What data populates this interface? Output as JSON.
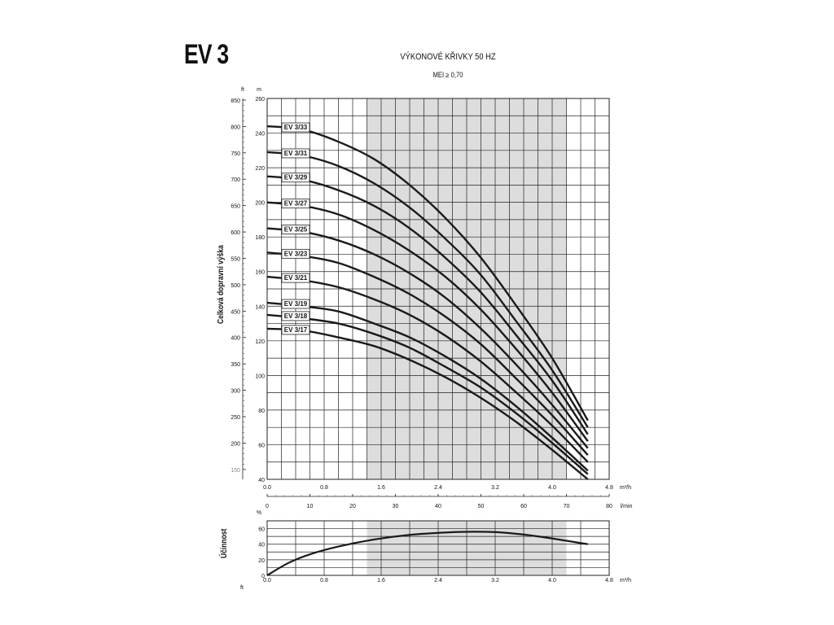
{
  "model": "EV 3",
  "title": "VÝKONOVÉ KŘIVKY 50 HZ",
  "subtitle": "MEI ≥ 0,70",
  "head_axis_label": "Celková dopravní výška",
  "efficiency_axis_label": "Účinnost",
  "units": {
    "ft": "ft",
    "m": "m",
    "flow_m3h": "m³/h",
    "flow_lmin": "l/min",
    "percent": "%",
    "ft_bottom": "ft"
  },
  "colors": {
    "curve": "#1a1a1a",
    "shade": "#dddddd",
    "grid": "#222222"
  },
  "chart_data": [
    {
      "type": "line",
      "title": "VÝKONOVÉ KŘIVKY 50 HZ",
      "ylabel": "Celková dopravní výška",
      "xlim": [
        0,
        4.8
      ],
      "ylim": [
        40,
        260
      ],
      "grid": true,
      "shaded_range_x": [
        1.4,
        4.2
      ],
      "x_ticks": [
        "0.0",
        "0.8",
        "1.6",
        "2.4",
        "3.2",
        "4.0",
        "4.8"
      ],
      "x_tick_values": [
        0,
        0.8,
        1.6,
        2.4,
        3.2,
        4.0,
        4.8
      ],
      "x2_ticks": [
        "0",
        "10",
        "20",
        "30",
        "40",
        "50",
        "60",
        "70",
        "80"
      ],
      "y_ticks_m": [
        "40",
        "60",
        "80",
        "100",
        "120",
        "140",
        "160",
        "180",
        "200",
        "220",
        "240",
        "260"
      ],
      "y_ticks_ft": [
        "150",
        "200",
        "250",
        "300",
        "350",
        "400",
        "450",
        "500",
        "550",
        "600",
        "650",
        "700",
        "750",
        "800",
        "850"
      ],
      "series": [
        {
          "name": "EV 3/33",
          "x": [
            0,
            0.5,
            1.0,
            1.5,
            2.0,
            2.5,
            3.0,
            3.5,
            4.0,
            4.5
          ],
          "y": [
            244,
            242,
            235,
            225,
            210,
            191,
            168,
            140,
            110,
            74
          ]
        },
        {
          "name": "EV 3/31",
          "x": [
            0,
            0.5,
            1.0,
            1.5,
            2.0,
            2.5,
            3.0,
            3.5,
            4.0,
            4.5
          ],
          "y": [
            229,
            227,
            221,
            211,
            197,
            179,
            158,
            131,
            103,
            70
          ]
        },
        {
          "name": "EV 3/29",
          "x": [
            0,
            0.5,
            1.0,
            1.5,
            2.0,
            2.5,
            3.0,
            3.5,
            4.0,
            4.5
          ],
          "y": [
            215,
            213,
            207,
            198,
            185,
            168,
            148,
            123,
            97,
            66
          ]
        },
        {
          "name": "EV 3/27",
          "x": [
            0,
            0.5,
            1.0,
            1.5,
            2.0,
            2.5,
            3.0,
            3.5,
            4.0,
            4.5
          ],
          "y": [
            200,
            198,
            193,
            184,
            172,
            157,
            138,
            115,
            90,
            62
          ]
        },
        {
          "name": "EV 3/25",
          "x": [
            0,
            0.5,
            1.0,
            1.5,
            2.0,
            2.5,
            3.0,
            3.5,
            4.0,
            4.5
          ],
          "y": [
            185,
            183,
            178,
            170,
            159,
            145,
            127,
            106,
            83,
            58
          ]
        },
        {
          "name": "EV 3/23",
          "x": [
            0,
            0.5,
            1.0,
            1.5,
            2.0,
            2.5,
            3.0,
            3.5,
            4.0,
            4.5
          ],
          "y": [
            171,
            169,
            165,
            157,
            147,
            134,
            118,
            98,
            77,
            54
          ]
        },
        {
          "name": "EV 3/21",
          "x": [
            0,
            0.5,
            1.0,
            1.5,
            2.0,
            2.5,
            3.0,
            3.5,
            4.0,
            4.5
          ],
          "y": [
            157,
            155,
            151,
            144,
            135,
            123,
            108,
            90,
            71,
            50
          ]
        },
        {
          "name": "EV 3/19",
          "x": [
            0,
            0.5,
            1.0,
            1.5,
            2.0,
            2.5,
            3.0,
            3.5,
            4.0,
            4.5
          ],
          "y": [
            142,
            140,
            137,
            130,
            122,
            111,
            98,
            82,
            64,
            45
          ]
        },
        {
          "name": "EV 3/18",
          "x": [
            0,
            0.5,
            1.0,
            1.5,
            2.0,
            2.5,
            3.0,
            3.5,
            4.0,
            4.5
          ],
          "y": [
            135,
            133,
            130,
            124,
            116,
            105,
            93,
            78,
            61,
            43
          ]
        },
        {
          "name": "EV 3/17",
          "x": [
            0,
            0.5,
            1.0,
            1.5,
            2.0,
            2.5,
            3.0,
            3.5,
            4.0,
            4.5
          ],
          "y": [
            127,
            126,
            122,
            117,
            109,
            99,
            87,
            73,
            57,
            40
          ]
        }
      ]
    },
    {
      "type": "line",
      "ylabel": "Účinnost",
      "xlim": [
        0,
        4.8
      ],
      "ylim": [
        0,
        70
      ],
      "grid": true,
      "shaded_range_x": [
        1.4,
        4.2
      ],
      "x_ticks": [
        "0.0",
        "0.8",
        "1.6",
        "2.4",
        "3.2",
        "4.0",
        "4.8"
      ],
      "y_ticks": [
        "0",
        "20",
        "40",
        "60"
      ],
      "series": [
        {
          "x": [
            0,
            0.3,
            0.6,
            1.0,
            1.5,
            2.0,
            2.5,
            2.9,
            3.3,
            3.8,
            4.5
          ],
          "y": [
            0,
            16,
            27,
            37,
            46,
            52,
            55,
            56,
            55,
            50,
            40
          ]
        }
      ]
    }
  ]
}
